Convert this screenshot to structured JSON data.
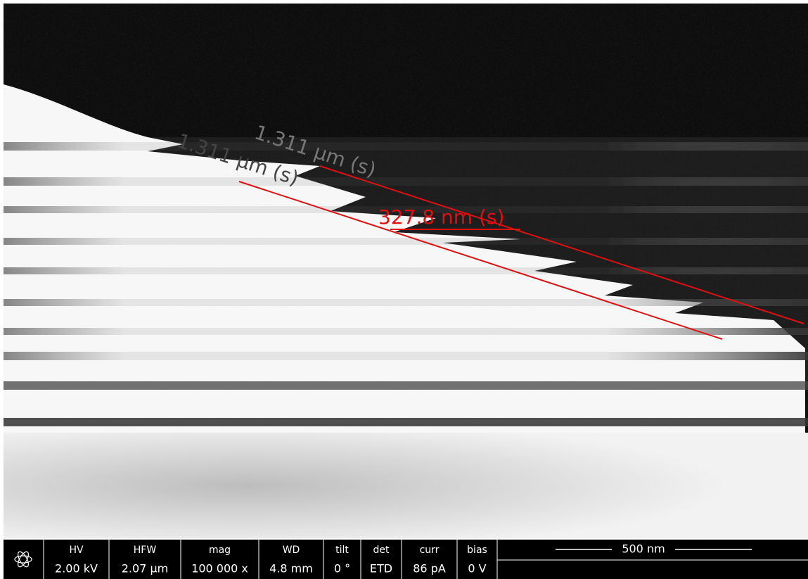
{
  "measurements": [
    {
      "label": "1.311 µm (s)"
    },
    {
      "label": "1.311 µm (s)"
    },
    {
      "label": "327.8 nm (s)"
    }
  ],
  "info_bar": {
    "columns": [
      {
        "header": "HV",
        "value": "2.00 kV"
      },
      {
        "header": "HFW",
        "value": "2.07 µm"
      },
      {
        "header": "mag",
        "value": "100 000 x"
      },
      {
        "header": "WD",
        "value": "4.8 mm"
      },
      {
        "header": "tilt",
        "value": "0 °"
      },
      {
        "header": "det",
        "value": "ETD"
      },
      {
        "header": "curr",
        "value": "86 pA"
      },
      {
        "header": "bias",
        "value": "0 V"
      }
    ],
    "scale_bar": "500 nm"
  }
}
